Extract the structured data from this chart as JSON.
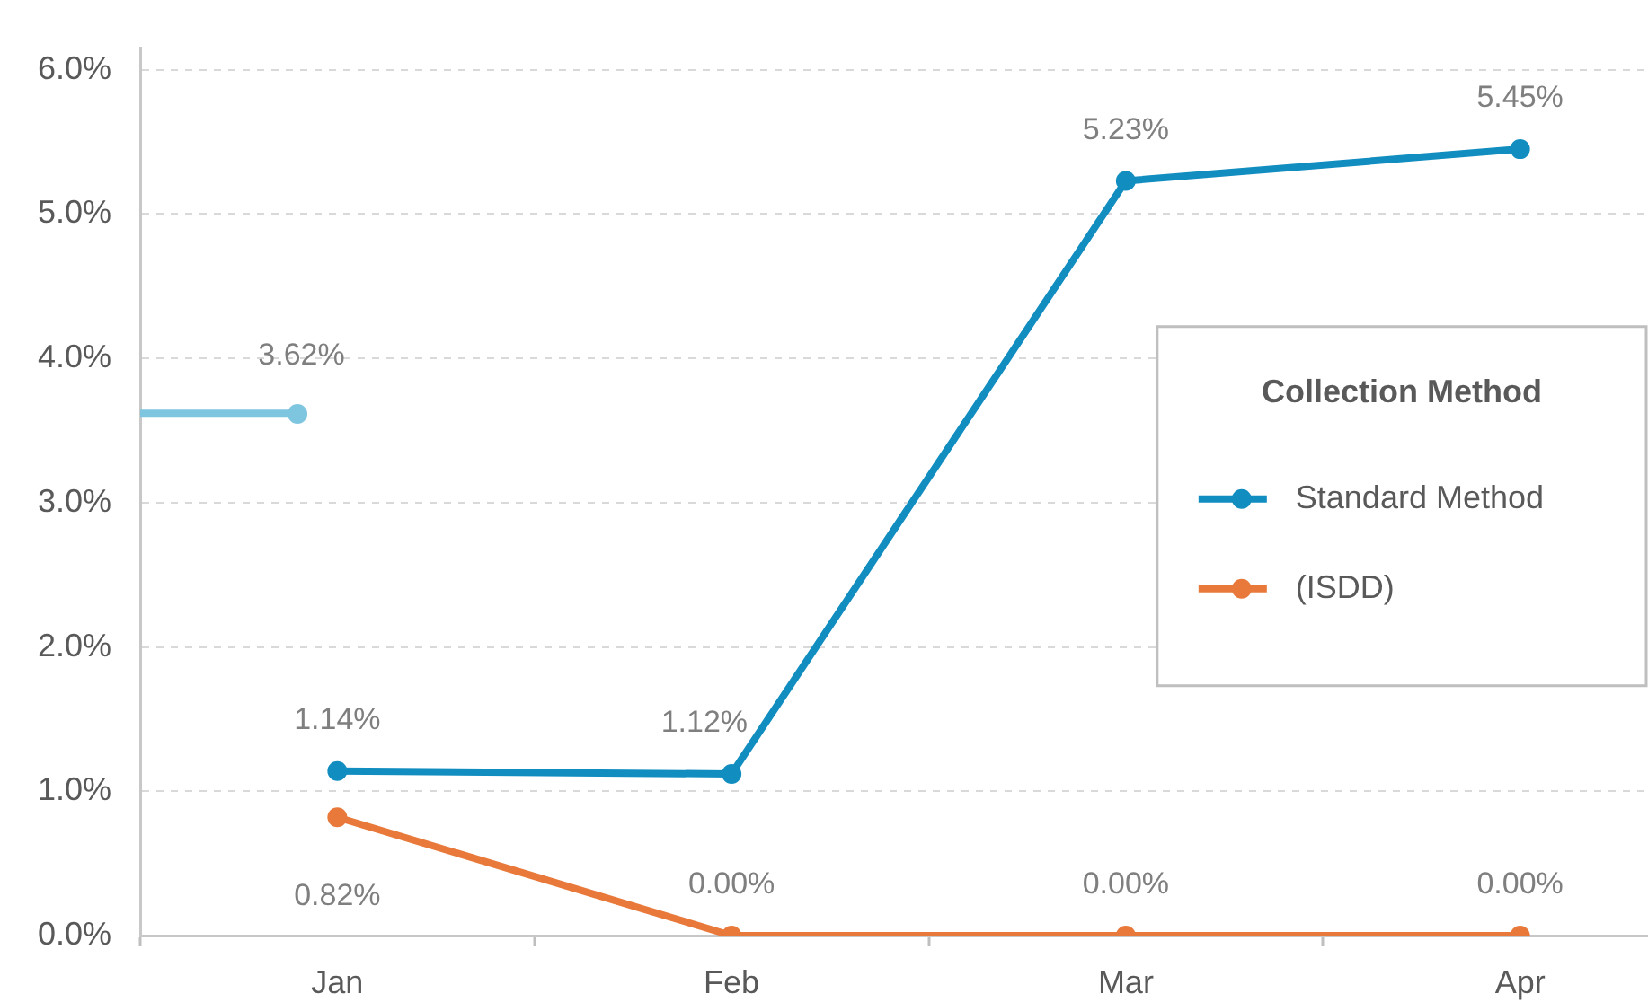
{
  "chart_data": {
    "type": "line",
    "categories": [
      "Jan",
      "Feb",
      "Mar",
      "Apr"
    ],
    "ylim": [
      0,
      6.15
    ],
    "yticks": [
      {
        "value": 0,
        "label": "0.0%"
      },
      {
        "value": 1,
        "label": "1.0%"
      },
      {
        "value": 2,
        "label": "2.0%"
      },
      {
        "value": 3,
        "label": "3.0%"
      },
      {
        "value": 4,
        "label": "4.0%"
      },
      {
        "value": 5,
        "label": "5.0%"
      },
      {
        "value": 6,
        "label": "6.0%"
      }
    ],
    "grid": "y",
    "legend": "right",
    "legend_title": "Collection Method",
    "marker": "circle",
    "line_style": "solid",
    "ref_lines": [
      {
        "axis": "y",
        "value": 3.62,
        "label": "3.62%",
        "color": "#7ec6e0"
      }
    ],
    "series": [
      {
        "name": "Standard Method",
        "color": "#118dc0",
        "values": [
          1.14,
          1.12,
          5.23,
          5.45
        ],
        "value_labels": [
          "1.14%",
          "1.12%",
          "5.23%",
          "5.45%"
        ]
      },
      {
        "name": "(ISDD)",
        "color": "#e8793a",
        "values": [
          0.82,
          0,
          0,
          0
        ],
        "value_labels": [
          "0.82%",
          "0.00%",
          "0.00%",
          "0.00%"
        ]
      }
    ]
  }
}
